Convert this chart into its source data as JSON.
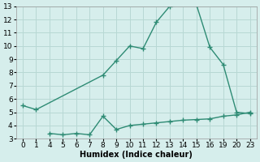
{
  "line1_x": [
    0,
    1,
    8,
    9,
    10,
    11,
    12,
    13,
    15,
    16,
    19,
    20,
    23
  ],
  "line1_y": [
    5.5,
    5.2,
    7.8,
    8.9,
    10.0,
    9.8,
    11.8,
    13.0,
    13.1,
    9.9,
    8.6,
    5.0,
    4.9
  ],
  "line2_x": [
    4,
    5,
    6,
    7,
    8,
    9,
    10,
    11,
    12,
    13,
    14,
    15,
    16,
    19,
    20,
    23
  ],
  "line2_y": [
    3.4,
    3.3,
    3.4,
    3.3,
    4.7,
    3.7,
    4.0,
    4.1,
    4.2,
    4.3,
    4.4,
    4.45,
    4.5,
    4.7,
    4.8,
    5.0
  ],
  "line_color": "#2e8b74",
  "bg_color": "#d6eeec",
  "grid_color": "#b8d8d4",
  "xlabel": "Humidex (Indice chaleur)",
  "ylim": [
    3,
    13
  ],
  "yticks": [
    3,
    4,
    5,
    6,
    7,
    8,
    9,
    10,
    11,
    12,
    13
  ],
  "xtick_labels": [
    "0",
    "1",
    "4",
    "5",
    "6",
    "7",
    "8",
    "9",
    "10",
    "11",
    "12",
    "13",
    "14",
    "15",
    "16",
    "19",
    "20",
    "23"
  ],
  "marker_size": 2.5,
  "line_width": 1.0,
  "xlabel_fontsize": 7,
  "tick_fontsize": 6.5
}
